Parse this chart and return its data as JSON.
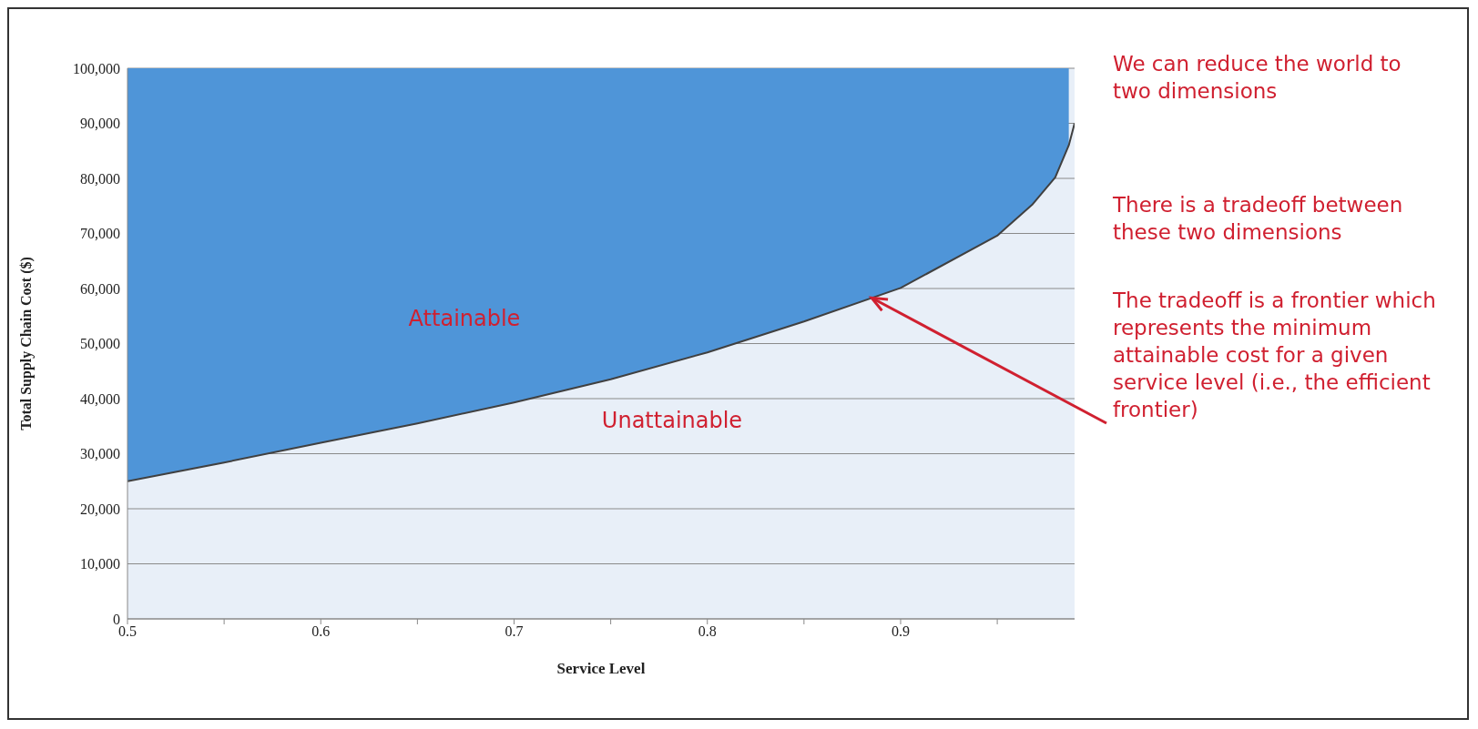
{
  "chart_data": {
    "type": "area",
    "xlabel": "Service Level",
    "ylabel": "Total Supply Chain Cost ($)",
    "x": [
      0.5,
      0.55,
      0.6,
      0.65,
      0.7,
      0.75,
      0.8,
      0.85,
      0.9,
      0.95,
      0.968,
      0.98,
      0.987,
      0.99
    ],
    "series": [
      {
        "color": "#4f95d8",
        "values": [
          100000,
          100000,
          100000,
          100000,
          100000,
          100000,
          100000,
          100000,
          100000,
          100000,
          100000,
          100000,
          100000,
          null
        ]
      },
      {
        "type": "line",
        "color": "#404040",
        "values": [
          25000,
          28400,
          32000,
          35500,
          39300,
          43500,
          48400,
          54000,
          60100,
          69600,
          75200,
          80200,
          86000,
          90000
        ]
      }
    ],
    "xlim": [
      0.5,
      0.99
    ],
    "xticks": [
      0.5,
      {
        "value": 0.55,
        "label": null
      },
      0.6,
      {
        "value": 0.65,
        "label": null
      },
      0.7,
      {
        "value": 0.75,
        "label": null
      },
      0.8,
      {
        "value": 0.85,
        "label": null
      },
      0.9,
      {
        "value": 0.95,
        "label": null
      }
    ],
    "ylim": [
      0,
      100000
    ],
    "yticks": [
      0,
      {
        "value": 10000,
        "label": "10,000"
      },
      {
        "value": 20000,
        "label": "20,000"
      },
      {
        "value": 30000,
        "label": "30,000"
      },
      {
        "value": 40000,
        "label": "40,000"
      },
      {
        "value": 50000,
        "label": "50,000"
      },
      {
        "value": 60000,
        "label": "60,000"
      },
      {
        "value": 70000,
        "label": "70,000"
      },
      {
        "value": 80000,
        "label": "80,000"
      },
      {
        "value": 90000,
        "label": "90,000"
      },
      {
        "value": 100000,
        "label": "100,000"
      }
    ],
    "grid": "y",
    "legend": false,
    "marker": "none",
    "line_style": "solid",
    "annotations": [
      "Attainable",
      "Unattainable",
      "We can reduce the world to two dimensions",
      "There is a tradeoff between these two dimensions",
      {
        "text": "The tradeoff is a frontier which represents the minimum attainable cost for a given service level (i.e., the efficient frontier)",
        "x": 0.885,
        "y": 58300
      }
    ]
  }
}
